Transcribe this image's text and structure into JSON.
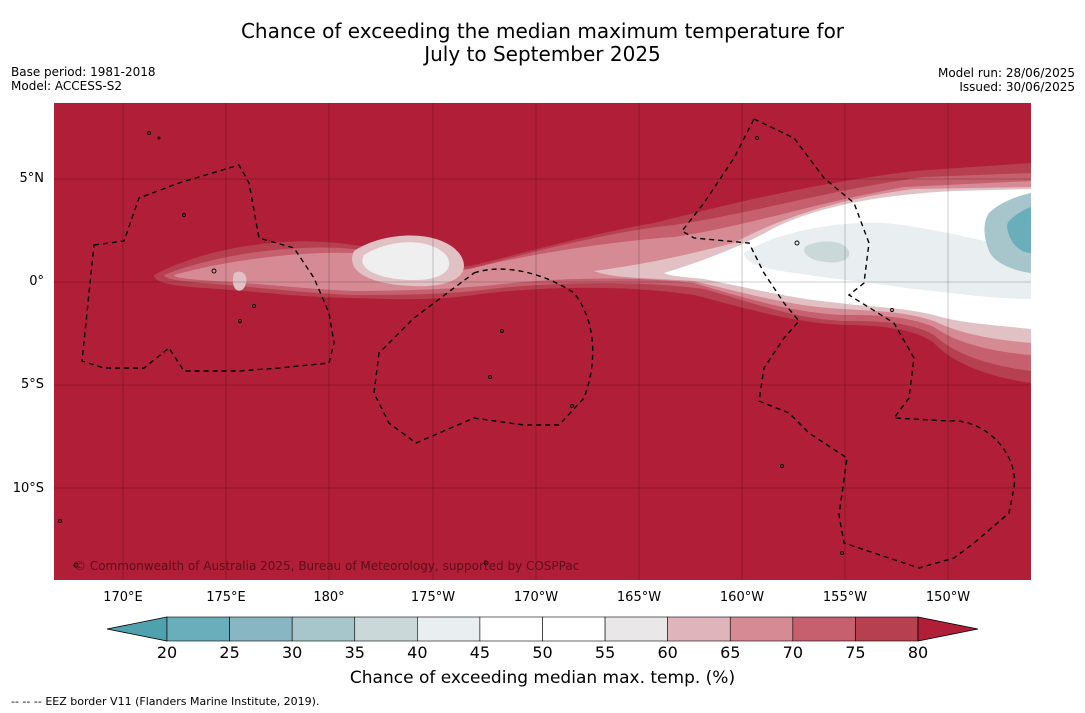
{
  "title": {
    "line1": "Chance of exceeding the median maximum temperature for",
    "line2": "July to September 2025"
  },
  "meta_left": {
    "base_period": "Base period: 1981-2018",
    "model": "Model: ACCESS-S2"
  },
  "meta_right": {
    "model_run": "Model run: 28/06/2025",
    "issued": "Issued: 30/06/2025"
  },
  "map": {
    "copyright": "© Commonwealth of Australia 2025, Bureau of Meteorology, supported by COSPPac",
    "lat_labels": [
      "5°N",
      "0°",
      "5°S",
      "10°S"
    ],
    "lon_labels": [
      "170°E",
      "175°E",
      "180°",
      "175°W",
      "170°W",
      "165°W",
      "160°W",
      "155°W",
      "150°W"
    ],
    "background_color": "#b11e38"
  },
  "colorbar": {
    "ticks": [
      "20",
      "25",
      "30",
      "35",
      "40",
      "45",
      "50",
      "55",
      "60",
      "65",
      "70",
      "75",
      "80"
    ],
    "colors": [
      "#4fa1ad",
      "#6aadbb",
      "#88b7c3",
      "#a6c6cb",
      "#cbd8da",
      "#e9eef0",
      "#ffffff",
      "#ffffff",
      "#e9e7e8",
      "#dfb5bb",
      "#d68b94",
      "#c65f6e",
      "#b6404f",
      "#b11e38"
    ],
    "label": "Chance of exceeding median max. temp. (%)"
  },
  "legend": {
    "symbol": "-- -- --",
    "text": "EEZ border V11 (Flanders Marine Institute, 2019)."
  }
}
